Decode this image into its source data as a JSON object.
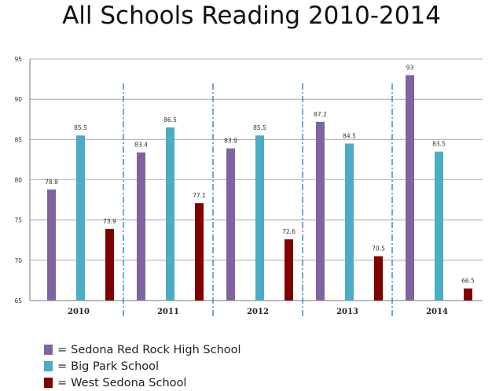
{
  "chart_data": {
    "type": "bar",
    "title": "All Schools Reading 2010-2014",
    "xlabel": "",
    "ylabel": "",
    "categories": [
      "2010",
      "2011",
      "2012",
      "2013",
      "2014"
    ],
    "ylim": [
      65,
      95
    ],
    "yticks": [
      65,
      70,
      75,
      80,
      85,
      90,
      95
    ],
    "grid": true,
    "legend_position": "bottom-left",
    "legend_prefix": "=",
    "series": [
      {
        "name": "Sedona Red Rock High School",
        "color": "#8064a2",
        "values": [
          78.8,
          83.4,
          83.9,
          87.2,
          93
        ],
        "labels": [
          "78.8",
          "83.4",
          "83.9",
          "87.2",
          "93"
        ]
      },
      {
        "name": "Big Park School",
        "color": "#4bacc6",
        "values": [
          85.5,
          86.5,
          85.5,
          84.5,
          83.5
        ],
        "labels": [
          "85.5",
          "86.5",
          "85.5",
          "84.5",
          "83.5"
        ]
      },
      {
        "name": "West Sedona School",
        "color": "#800000",
        "values": [
          73.9,
          77.1,
          72.6,
          70.5,
          66.5
        ],
        "labels": [
          "73.9",
          "77.1",
          "72.6",
          "70.5",
          "66.5"
        ]
      }
    ]
  }
}
